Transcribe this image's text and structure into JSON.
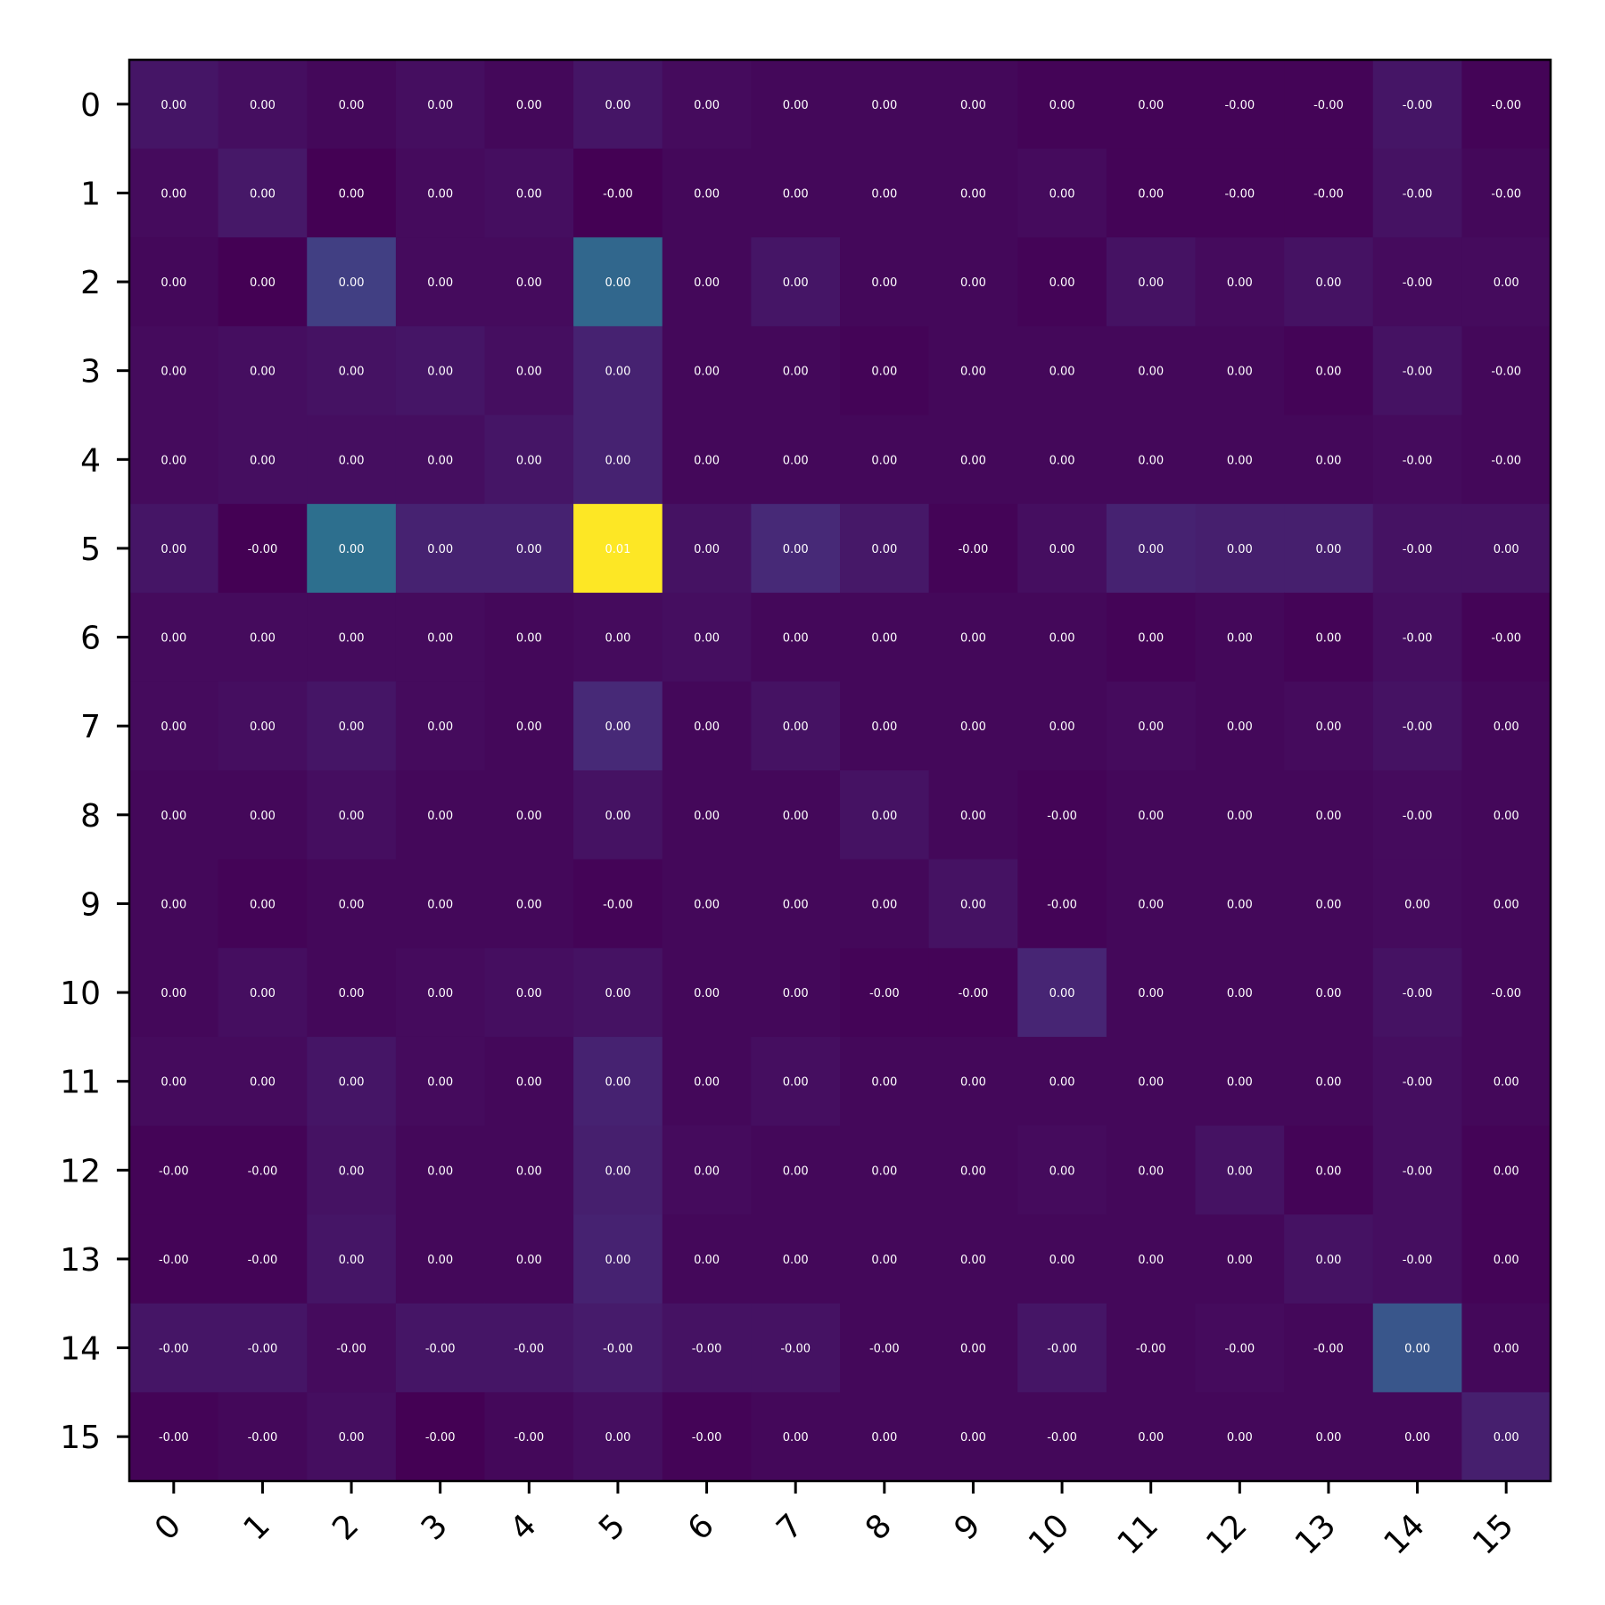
{
  "chart_data": {
    "type": "heatmap",
    "title": "",
    "xlabel": "",
    "ylabel": "",
    "x_ticks": [
      "0",
      "1",
      "2",
      "3",
      "4",
      "5",
      "6",
      "7",
      "8",
      "9",
      "10",
      "11",
      "12",
      "13",
      "14",
      "15"
    ],
    "y_ticks": [
      "0",
      "1",
      "2",
      "3",
      "4",
      "5",
      "6",
      "7",
      "8",
      "9",
      "10",
      "11",
      "12",
      "13",
      "14",
      "15"
    ],
    "colormap": "viridis",
    "color_range": [
      0,
      1
    ],
    "intensity": [
      [
        0.06,
        0.04,
        0.02,
        0.04,
        0.02,
        0.06,
        0.03,
        0.02,
        0.02,
        0.02,
        0.01,
        0.01,
        0.01,
        0.01,
        0.06,
        0.01
      ],
      [
        0.03,
        0.07,
        0.0,
        0.03,
        0.04,
        0.0,
        0.02,
        0.02,
        0.02,
        0.02,
        0.03,
        0.01,
        0.01,
        0.01,
        0.05,
        0.02
      ],
      [
        0.02,
        0.0,
        0.19,
        0.03,
        0.03,
        0.34,
        0.02,
        0.06,
        0.02,
        0.02,
        0.01,
        0.05,
        0.03,
        0.05,
        0.03,
        0.03
      ],
      [
        0.03,
        0.04,
        0.05,
        0.06,
        0.04,
        0.1,
        0.02,
        0.02,
        0.01,
        0.02,
        0.02,
        0.02,
        0.02,
        0.01,
        0.05,
        0.02
      ],
      [
        0.03,
        0.04,
        0.04,
        0.04,
        0.06,
        0.1,
        0.02,
        0.02,
        0.02,
        0.02,
        0.02,
        0.02,
        0.02,
        0.02,
        0.03,
        0.02
      ],
      [
        0.06,
        0.0,
        0.37,
        0.1,
        0.1,
        1.0,
        0.05,
        0.12,
        0.07,
        0.01,
        0.04,
        0.1,
        0.09,
        0.09,
        0.05,
        0.05
      ],
      [
        0.03,
        0.03,
        0.03,
        0.03,
        0.02,
        0.03,
        0.04,
        0.02,
        0.02,
        0.02,
        0.02,
        0.01,
        0.02,
        0.01,
        0.04,
        0.01
      ],
      [
        0.03,
        0.04,
        0.06,
        0.03,
        0.02,
        0.12,
        0.02,
        0.05,
        0.02,
        0.02,
        0.02,
        0.03,
        0.02,
        0.03,
        0.05,
        0.02
      ],
      [
        0.02,
        0.02,
        0.04,
        0.02,
        0.02,
        0.05,
        0.02,
        0.02,
        0.05,
        0.02,
        0.01,
        0.02,
        0.02,
        0.02,
        0.03,
        0.02
      ],
      [
        0.02,
        0.01,
        0.02,
        0.02,
        0.02,
        0.01,
        0.02,
        0.02,
        0.02,
        0.05,
        0.01,
        0.02,
        0.02,
        0.02,
        0.03,
        0.02
      ],
      [
        0.02,
        0.04,
        0.02,
        0.03,
        0.04,
        0.05,
        0.02,
        0.02,
        0.01,
        0.01,
        0.11,
        0.02,
        0.02,
        0.02,
        0.05,
        0.02
      ],
      [
        0.03,
        0.03,
        0.06,
        0.03,
        0.02,
        0.1,
        0.02,
        0.04,
        0.02,
        0.02,
        0.02,
        0.02,
        0.02,
        0.02,
        0.04,
        0.02
      ],
      [
        0.01,
        0.01,
        0.05,
        0.02,
        0.02,
        0.09,
        0.03,
        0.02,
        0.02,
        0.02,
        0.03,
        0.02,
        0.05,
        0.01,
        0.04,
        0.01
      ],
      [
        0.01,
        0.01,
        0.06,
        0.02,
        0.02,
        0.1,
        0.02,
        0.02,
        0.02,
        0.02,
        0.02,
        0.02,
        0.02,
        0.05,
        0.04,
        0.01
      ],
      [
        0.06,
        0.06,
        0.03,
        0.06,
        0.06,
        0.08,
        0.05,
        0.05,
        0.02,
        0.02,
        0.06,
        0.02,
        0.03,
        0.02,
        0.27,
        0.02
      ],
      [
        0.01,
        0.02,
        0.04,
        0.0,
        0.02,
        0.04,
        0.01,
        0.02,
        0.02,
        0.02,
        0.02,
        0.02,
        0.02,
        0.02,
        0.02,
        0.09
      ]
    ],
    "cell_labels": [
      [
        "0.00",
        "0.00",
        "0.00",
        "0.00",
        "0.00",
        "0.00",
        "0.00",
        "0.00",
        "0.00",
        "0.00",
        "0.00",
        "0.00",
        "-0.00",
        "-0.00",
        "-0.00",
        "-0.00"
      ],
      [
        "0.00",
        "0.00",
        "0.00",
        "0.00",
        "0.00",
        "-0.00",
        "0.00",
        "0.00",
        "0.00",
        "0.00",
        "0.00",
        "0.00",
        "-0.00",
        "-0.00",
        "-0.00",
        "-0.00"
      ],
      [
        "0.00",
        "0.00",
        "0.00",
        "0.00",
        "0.00",
        "0.00",
        "0.00",
        "0.00",
        "0.00",
        "0.00",
        "0.00",
        "0.00",
        "0.00",
        "0.00",
        "-0.00",
        "0.00"
      ],
      [
        "0.00",
        "0.00",
        "0.00",
        "0.00",
        "0.00",
        "0.00",
        "0.00",
        "0.00",
        "0.00",
        "0.00",
        "0.00",
        "0.00",
        "0.00",
        "0.00",
        "-0.00",
        "-0.00"
      ],
      [
        "0.00",
        "0.00",
        "0.00",
        "0.00",
        "0.00",
        "0.00",
        "0.00",
        "0.00",
        "0.00",
        "0.00",
        "0.00",
        "0.00",
        "0.00",
        "0.00",
        "-0.00",
        "-0.00"
      ],
      [
        "0.00",
        "-0.00",
        "0.00",
        "0.00",
        "0.00",
        "0.01",
        "0.00",
        "0.00",
        "0.00",
        "-0.00",
        "0.00",
        "0.00",
        "0.00",
        "0.00",
        "-0.00",
        "0.00"
      ],
      [
        "0.00",
        "0.00",
        "0.00",
        "0.00",
        "0.00",
        "0.00",
        "0.00",
        "0.00",
        "0.00",
        "0.00",
        "0.00",
        "0.00",
        "0.00",
        "0.00",
        "-0.00",
        "-0.00"
      ],
      [
        "0.00",
        "0.00",
        "0.00",
        "0.00",
        "0.00",
        "0.00",
        "0.00",
        "0.00",
        "0.00",
        "0.00",
        "0.00",
        "0.00",
        "0.00",
        "0.00",
        "-0.00",
        "0.00"
      ],
      [
        "0.00",
        "0.00",
        "0.00",
        "0.00",
        "0.00",
        "0.00",
        "0.00",
        "0.00",
        "0.00",
        "0.00",
        "-0.00",
        "0.00",
        "0.00",
        "0.00",
        "-0.00",
        "0.00"
      ],
      [
        "0.00",
        "0.00",
        "0.00",
        "0.00",
        "0.00",
        "-0.00",
        "0.00",
        "0.00",
        "0.00",
        "0.00",
        "-0.00",
        "0.00",
        "0.00",
        "0.00",
        "0.00",
        "0.00"
      ],
      [
        "0.00",
        "0.00",
        "0.00",
        "0.00",
        "0.00",
        "0.00",
        "0.00",
        "0.00",
        "-0.00",
        "-0.00",
        "0.00",
        "0.00",
        "0.00",
        "0.00",
        "-0.00",
        "-0.00"
      ],
      [
        "0.00",
        "0.00",
        "0.00",
        "0.00",
        "0.00",
        "0.00",
        "0.00",
        "0.00",
        "0.00",
        "0.00",
        "0.00",
        "0.00",
        "0.00",
        "0.00",
        "-0.00",
        "0.00"
      ],
      [
        "-0.00",
        "-0.00",
        "0.00",
        "0.00",
        "0.00",
        "0.00",
        "0.00",
        "0.00",
        "0.00",
        "0.00",
        "0.00",
        "0.00",
        "0.00",
        "0.00",
        "-0.00",
        "0.00"
      ],
      [
        "-0.00",
        "-0.00",
        "0.00",
        "0.00",
        "0.00",
        "0.00",
        "0.00",
        "0.00",
        "0.00",
        "0.00",
        "0.00",
        "0.00",
        "0.00",
        "0.00",
        "-0.00",
        "0.00"
      ],
      [
        "-0.00",
        "-0.00",
        "-0.00",
        "-0.00",
        "-0.00",
        "-0.00",
        "-0.00",
        "-0.00",
        "-0.00",
        "0.00",
        "-0.00",
        "-0.00",
        "-0.00",
        "-0.00",
        "0.00",
        "0.00"
      ],
      [
        "-0.00",
        "-0.00",
        "0.00",
        "-0.00",
        "-0.00",
        "0.00",
        "-0.00",
        "0.00",
        "0.00",
        "0.00",
        "-0.00",
        "0.00",
        "0.00",
        "0.00",
        "0.00",
        "0.00"
      ]
    ]
  }
}
